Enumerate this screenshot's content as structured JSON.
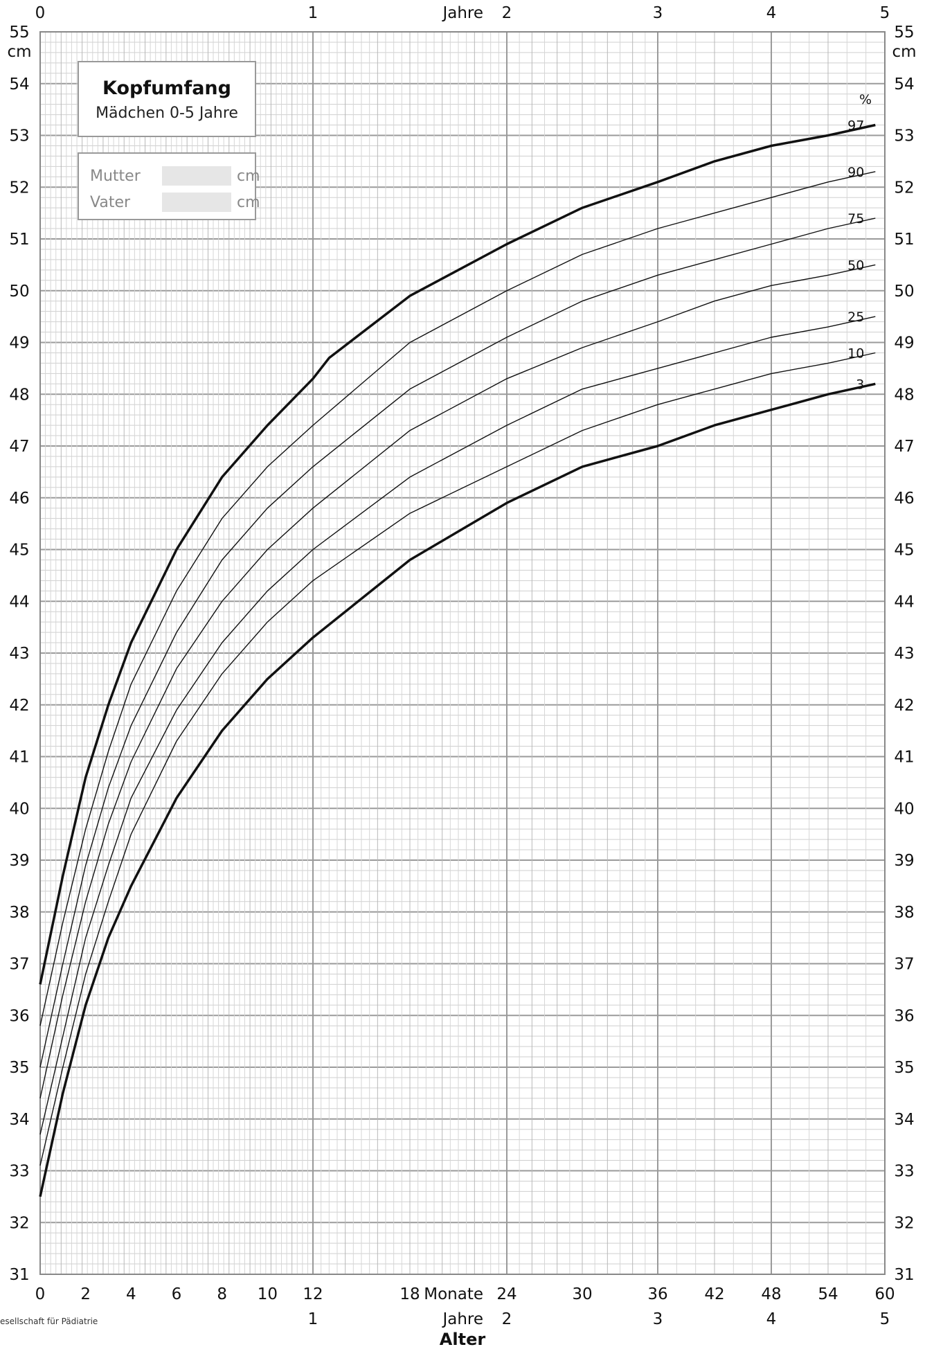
{
  "header_box": {
    "title": "Kopfumfang",
    "subtitle": "Mädchen 0-5 Jahre"
  },
  "parents_box": {
    "mother_label": "Mutter",
    "father_label": "Vater",
    "unit": "cm",
    "mother_value": "",
    "father_value": ""
  },
  "credit": "esellschaft für Pädiatrie",
  "chart_data": {
    "type": "line",
    "title": "Kopfumfang",
    "subtitle": "Mädchen 0-5 Jahre",
    "xlabel": "Alter",
    "ylabel": "cm",
    "xlim": [
      0,
      60
    ],
    "ylim": [
      31,
      55
    ],
    "x_unit_months": "Monate",
    "x_unit_years": "Jahre",
    "percent_label": "%",
    "y_ticks": [
      31,
      32,
      33,
      34,
      35,
      36,
      37,
      38,
      39,
      40,
      41,
      42,
      43,
      44,
      45,
      46,
      47,
      48,
      49,
      50,
      51,
      52,
      53,
      54,
      55
    ],
    "x_ticks_months": [
      0,
      2,
      4,
      6,
      8,
      10,
      12,
      18,
      24,
      30,
      36,
      42,
      48,
      54,
      60
    ],
    "x_ticks_months_labels": [
      "0",
      "2",
      "4",
      "6",
      "8",
      "10",
      "12",
      "18",
      "24",
      "30",
      "36",
      "42",
      "48",
      "54",
      "60"
    ],
    "x_ticks_years_top": [
      {
        "month": 0,
        "label": "0"
      },
      {
        "month": 12,
        "label": "1"
      },
      {
        "month": 24,
        "label": "2"
      },
      {
        "month": 36,
        "label": "3"
      },
      {
        "month": 48,
        "label": "4"
      },
      {
        "month": 60,
        "label": "5"
      }
    ],
    "x_ticks_years_bottom": [
      {
        "month": 12,
        "label": "1"
      },
      {
        "month": 24,
        "label": "2"
      },
      {
        "month": 36,
        "label": "3"
      },
      {
        "month": 48,
        "label": "4"
      },
      {
        "month": 60,
        "label": "5"
      }
    ],
    "x_breaks": [
      0,
      12,
      24,
      36,
      60
    ],
    "series": [
      {
        "name": "97",
        "bold": true,
        "x": [
          0,
          1,
          2,
          3,
          4,
          6,
          8,
          10,
          12,
          13,
          18,
          24,
          30,
          36,
          42,
          48,
          54,
          59
        ],
        "values": [
          36.6,
          38.7,
          40.6,
          42.0,
          43.2,
          45.0,
          46.4,
          47.4,
          48.3,
          48.7,
          49.9,
          50.9,
          51.6,
          52.1,
          52.5,
          52.8,
          53.0,
          53.2
        ]
      },
      {
        "name": "90",
        "bold": false,
        "x": [
          0,
          1,
          2,
          3,
          4,
          6,
          8,
          10,
          12,
          18,
          24,
          30,
          36,
          42,
          48,
          54,
          59
        ],
        "values": [
          35.8,
          37.8,
          39.6,
          41.1,
          42.4,
          44.2,
          45.6,
          46.6,
          47.4,
          49.0,
          50.0,
          50.7,
          51.2,
          51.5,
          51.8,
          52.1,
          52.3
        ]
      },
      {
        "name": "75",
        "bold": false,
        "x": [
          0,
          1,
          2,
          3,
          4,
          6,
          8,
          10,
          12,
          18,
          24,
          30,
          36,
          42,
          48,
          54,
          59
        ],
        "values": [
          35.0,
          37.0,
          38.9,
          40.4,
          41.6,
          43.4,
          44.8,
          45.8,
          46.6,
          48.1,
          49.1,
          49.8,
          50.3,
          50.6,
          50.9,
          51.2,
          51.4
        ]
      },
      {
        "name": "50",
        "bold": false,
        "x": [
          0,
          1,
          2,
          3,
          4,
          6,
          8,
          10,
          12,
          18,
          24,
          30,
          36,
          42,
          48,
          54,
          59
        ],
        "values": [
          34.4,
          36.4,
          38.2,
          39.7,
          40.9,
          42.7,
          44.0,
          45.0,
          45.8,
          47.3,
          48.3,
          48.9,
          49.4,
          49.8,
          50.1,
          50.3,
          50.5
        ]
      },
      {
        "name": "25",
        "bold": false,
        "x": [
          0,
          1,
          2,
          3,
          4,
          6,
          8,
          10,
          12,
          18,
          24,
          30,
          36,
          42,
          48,
          54,
          59
        ],
        "values": [
          33.7,
          35.6,
          37.5,
          38.9,
          40.2,
          41.9,
          43.2,
          44.2,
          45.0,
          46.4,
          47.4,
          48.1,
          48.5,
          48.8,
          49.1,
          49.3,
          49.5
        ]
      },
      {
        "name": "10",
        "bold": false,
        "x": [
          0,
          1,
          2,
          3,
          4,
          6,
          8,
          10,
          12,
          18,
          24,
          30,
          36,
          42,
          48,
          54,
          59
        ],
        "values": [
          33.1,
          35.0,
          36.8,
          38.2,
          39.5,
          41.3,
          42.6,
          43.6,
          44.4,
          45.7,
          46.6,
          47.3,
          47.8,
          48.1,
          48.4,
          48.6,
          48.8
        ]
      },
      {
        "name": "3",
        "bold": true,
        "x": [
          0,
          1,
          2,
          3,
          4,
          6,
          8,
          10,
          12,
          18,
          24,
          30,
          36,
          42,
          48,
          54,
          59
        ],
        "values": [
          32.5,
          34.5,
          36.2,
          37.5,
          38.5,
          40.2,
          41.5,
          42.5,
          43.3,
          44.8,
          45.9,
          46.6,
          47.0,
          47.4,
          47.7,
          48.0,
          48.2
        ]
      }
    ]
  }
}
